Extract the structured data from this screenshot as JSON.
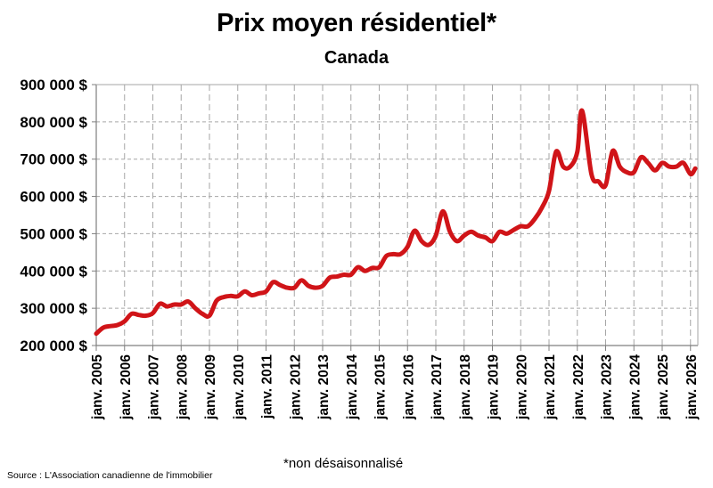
{
  "header": {
    "title": "Prix moyen résidentiel*",
    "subtitle": "Canada"
  },
  "footer": {
    "note": "*non désaisonnalisé",
    "source": "Source : L'Association canadienne de l'immobilier"
  },
  "colors": {
    "line": "#d01418",
    "grid": "#a6a6a6",
    "axis": "#7f7f7f"
  },
  "chart_data": {
    "type": "line",
    "title": "Prix moyen résidentiel*",
    "subtitle": "Canada",
    "xlabel": "",
    "ylabel": "",
    "ylim": [
      200000,
      900000
    ],
    "y_ticks": [
      200000,
      300000,
      400000,
      500000,
      600000,
      700000,
      800000,
      900000
    ],
    "y_tick_labels": [
      "200 000 $",
      "300 000 $",
      "400 000 $",
      "500 000 $",
      "600 000 $",
      "700 000 $",
      "800 000 $",
      "900 000 $"
    ],
    "x_tick_labels": [
      "janv. 2005",
      "janv. 2006",
      "janv. 2007",
      "janv. 2008",
      "janv. 2009",
      "janv. 2010",
      "janv. 2011",
      "janv. 2012",
      "janv. 2013",
      "janv. 2014",
      "janv. 2015",
      "janv. 2016",
      "janv. 2017",
      "janv. 2018",
      "janv. 2019",
      "janv. 2020",
      "janv. 2021",
      "janv. 2022",
      "janv. 2023",
      "janv. 2024",
      "janv. 2025",
      "janv. 2026"
    ],
    "grid": true,
    "legend": "none",
    "series": [
      {
        "name": "Prix moyen résidentiel (Canada)",
        "x": [
          2005.0,
          2005.25,
          2005.5,
          2005.75,
          2006.0,
          2006.25,
          2006.5,
          2006.75,
          2007.0,
          2007.25,
          2007.5,
          2007.75,
          2008.0,
          2008.25,
          2008.5,
          2008.75,
          2009.0,
          2009.25,
          2009.5,
          2009.75,
          2010.0,
          2010.25,
          2010.5,
          2010.75,
          2011.0,
          2011.25,
          2011.5,
          2011.75,
          2012.0,
          2012.25,
          2012.5,
          2012.75,
          2013.0,
          2013.25,
          2013.5,
          2013.75,
          2014.0,
          2014.25,
          2014.5,
          2014.75,
          2015.0,
          2015.25,
          2015.5,
          2015.75,
          2016.0,
          2016.25,
          2016.5,
          2016.75,
          2017.0,
          2017.25,
          2017.5,
          2017.75,
          2018.0,
          2018.25,
          2018.5,
          2018.75,
          2019.0,
          2019.25,
          2019.5,
          2019.75,
          2020.0,
          2020.25,
          2020.5,
          2020.75,
          2021.0,
          2021.25,
          2021.5,
          2021.75,
          2022.0,
          2022.17,
          2022.5,
          2022.75,
          2023.0,
          2023.25,
          2023.5,
          2023.75,
          2024.0,
          2024.25,
          2024.5,
          2024.75,
          2025.0,
          2025.25,
          2025.5,
          2025.75,
          2026.0,
          2026.17
        ],
        "values": [
          232000,
          248000,
          252000,
          255000,
          265000,
          285000,
          282000,
          280000,
          287000,
          312000,
          305000,
          310000,
          310000,
          318000,
          300000,
          285000,
          280000,
          320000,
          330000,
          333000,
          332000,
          345000,
          335000,
          340000,
          345000,
          370000,
          362000,
          355000,
          355000,
          375000,
          360000,
          355000,
          360000,
          382000,
          385000,
          390000,
          390000,
          410000,
          400000,
          408000,
          410000,
          440000,
          445000,
          445000,
          465000,
          508000,
          480000,
          470000,
          495000,
          560000,
          505000,
          480000,
          495000,
          505000,
          495000,
          490000,
          480000,
          505000,
          500000,
          510000,
          520000,
          520000,
          540000,
          570000,
          615000,
          720000,
          680000,
          680000,
          720000,
          830000,
          660000,
          640000,
          630000,
          722000,
          680000,
          665000,
          665000,
          705000,
          690000,
          670000,
          690000,
          680000,
          680000,
          690000,
          660000,
          675000
        ]
      }
    ]
  }
}
